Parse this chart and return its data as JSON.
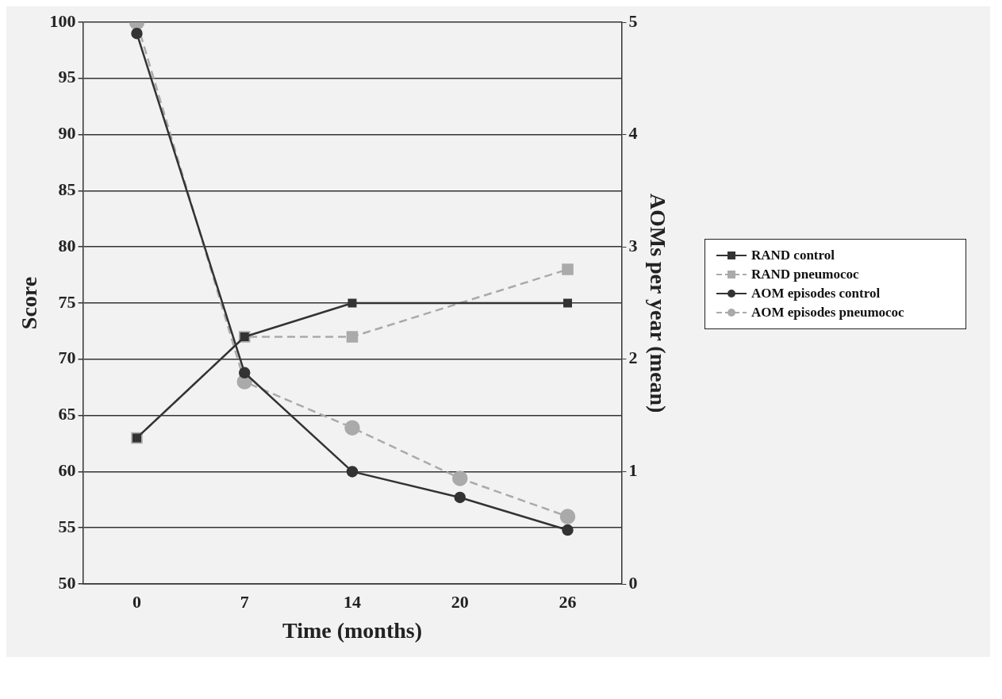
{
  "chart_data": {
    "type": "line",
    "xlabel": "Time (months)",
    "ylabel": "Score",
    "y2label": "AOMs per year (mean)",
    "categories": [
      "0",
      "7",
      "14",
      "20",
      "26"
    ],
    "series": [
      {
        "name": "RAND control",
        "color": "#333333",
        "marker": "square",
        "line_style": "solid",
        "values": [
          63,
          72,
          75,
          null,
          75
        ]
      },
      {
        "name": "RAND pneumococ",
        "color": "#aaaaaa",
        "marker": "square",
        "line_style": "dashed",
        "values": [
          63,
          72,
          72,
          null,
          78
        ]
      },
      {
        "name": "AOM episodes control",
        "color": "#333333",
        "marker": "circle",
        "line_style": "solid",
        "axis": "y2",
        "values": [
          4.9,
          1.88,
          1.0,
          0.77,
          0.48
        ]
      },
      {
        "name": "AOM episodes pneumococ",
        "color": "#aaaaaa",
        "marker": "circle",
        "line_style": "dashed",
        "axis": "y2",
        "values": [
          5.0,
          1.8,
          1.39,
          0.94,
          0.6
        ]
      }
    ],
    "ylim": [
      50,
      100
    ],
    "yticks": [
      50,
      55,
      60,
      65,
      70,
      75,
      80,
      85,
      90,
      95,
      100
    ],
    "y2lim": [
      0,
      5
    ],
    "y2ticks": [
      0,
      1,
      2,
      3,
      4,
      5
    ],
    "grid": "y",
    "legend": "right"
  }
}
